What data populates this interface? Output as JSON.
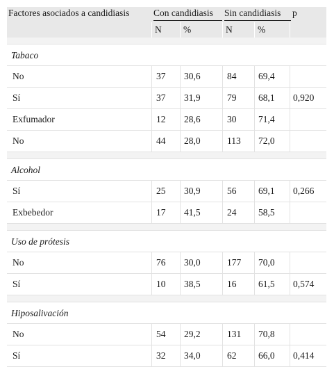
{
  "header": {
    "factor": "Factores asociados a candidiasis",
    "con": "Con candidiasis",
    "sin": "Sin candidiasis",
    "p": "p",
    "n": "N",
    "pct": "%"
  },
  "groups": [
    {
      "title": "Tabaco",
      "rows": [
        {
          "label": "No",
          "n1": "37",
          "p1": "30,6",
          "n2": "84",
          "p2": "69,4",
          "p": ""
        },
        {
          "label": "Sí",
          "n1": "37",
          "p1": "31,9",
          "n2": "79",
          "p2": "68,1",
          "p": "0,920"
        },
        {
          "label": "Exfumador",
          "n1": "12",
          "p1": "28,6",
          "n2": "30",
          "p2": "71,4",
          "p": ""
        },
        {
          "label": "No",
          "n1": "44",
          "p1": "28,0",
          "n2": "113",
          "p2": "72,0",
          "p": ""
        }
      ]
    },
    {
      "title": "Alcohol",
      "rows": [
        {
          "label": "Sí",
          "n1": "25",
          "p1": "30,9",
          "n2": "56",
          "p2": "69,1",
          "p": "0,266"
        },
        {
          "label": "Exbebedor",
          "n1": "17",
          "p1": "41,5",
          "n2": "24",
          "p2": "58,5",
          "p": ""
        }
      ]
    },
    {
      "title": "Uso de prótesis",
      "rows": [
        {
          "label": "No",
          "n1": "76",
          "p1": "30,0",
          "n2": "177",
          "p2": "70,0",
          "p": ""
        },
        {
          "label": "Sí",
          "n1": "10",
          "p1": "38,5",
          "n2": "16",
          "p2": "61,5",
          "p": "0,574"
        }
      ]
    },
    {
      "title": "Hiposalivación",
      "rows": [
        {
          "label": "No",
          "n1": "54",
          "p1": "29,2",
          "n2": "131",
          "p2": "70,8",
          "p": ""
        },
        {
          "label": "Sí",
          "n1": "32",
          "p1": "34,0",
          "n2": "62",
          "p2": "66,0",
          "p": "0,414"
        }
      ]
    }
  ]
}
